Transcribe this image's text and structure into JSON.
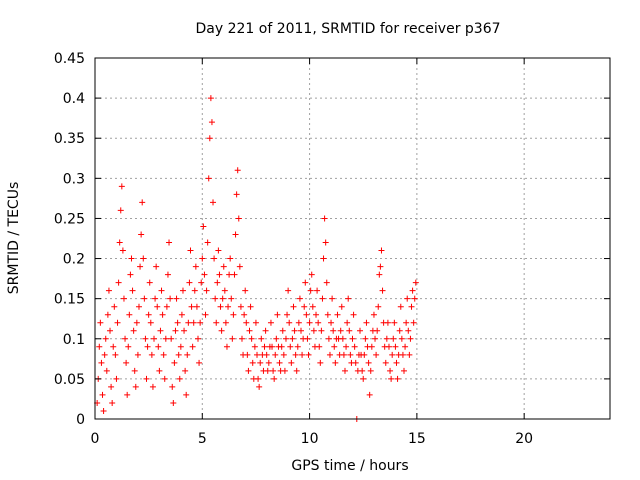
{
  "chart_data": {
    "type": "scatter",
    "title": "Day 221 of 2011, SRMTID for receiver p367",
    "xlabel": "GPS time / hours",
    "ylabel": "SRMTID / TECUs",
    "xlim": [
      0,
      24
    ],
    "ylim": [
      0,
      0.45
    ],
    "xticks": [
      0,
      5,
      10,
      15,
      20
    ],
    "xtick_labels": [
      "0",
      "5",
      "10",
      "15",
      "20"
    ],
    "yticks": [
      0,
      0.05,
      0.1,
      0.15,
      0.2,
      0.25,
      0.3,
      0.35,
      0.4,
      0.45
    ],
    "ytick_labels": [
      "0",
      "0.05",
      "0.1",
      "0.15",
      "0.2",
      "0.25",
      "0.3",
      "0.35",
      "0.4",
      "0.45"
    ],
    "grid": true,
    "marker": "+",
    "color": "#ff0000",
    "series": [
      {
        "points": [
          [
            0.1,
            0.02
          ],
          [
            0.15,
            0.05
          ],
          [
            0.2,
            0.09
          ],
          [
            0.25,
            0.12
          ],
          [
            0.3,
            0.07
          ],
          [
            0.35,
            0.03
          ],
          [
            0.4,
            0.01
          ],
          [
            0.45,
            0.08
          ],
          [
            0.5,
            0.1
          ],
          [
            0.55,
            0.06
          ],
          [
            0.6,
            0.13
          ],
          [
            0.65,
            0.16
          ],
          [
            0.7,
            0.11
          ],
          [
            0.75,
            0.04
          ],
          [
            0.8,
            0.02
          ],
          [
            0.85,
            0.09
          ],
          [
            0.9,
            0.14
          ],
          [
            0.95,
            0.08
          ],
          [
            1.0,
            0.05
          ],
          [
            1.05,
            0.12
          ],
          [
            1.1,
            0.17
          ],
          [
            1.15,
            0.22
          ],
          [
            1.2,
            0.26
          ],
          [
            1.25,
            0.29
          ],
          [
            1.3,
            0.21
          ],
          [
            1.35,
            0.15
          ],
          [
            1.4,
            0.1
          ],
          [
            1.45,
            0.07
          ],
          [
            1.5,
            0.03
          ],
          [
            1.55,
            0.09
          ],
          [
            1.6,
            0.13
          ],
          [
            1.65,
            0.18
          ],
          [
            1.7,
            0.2
          ],
          [
            1.75,
            0.16
          ],
          [
            1.8,
            0.11
          ],
          [
            1.85,
            0.06
          ],
          [
            1.9,
            0.04
          ],
          [
            1.95,
            0.12
          ],
          [
            2.0,
            0.08
          ],
          [
            2.05,
            0.14
          ],
          [
            2.1,
            0.19
          ],
          [
            2.15,
            0.23
          ],
          [
            2.2,
            0.27
          ],
          [
            2.25,
            0.2
          ],
          [
            2.3,
            0.15
          ],
          [
            2.35,
            0.1
          ],
          [
            2.4,
            0.05
          ],
          [
            2.45,
            0.09
          ],
          [
            2.5,
            0.13
          ],
          [
            2.55,
            0.17
          ],
          [
            2.6,
            0.12
          ],
          [
            2.65,
            0.08
          ],
          [
            2.7,
            0.04
          ],
          [
            2.75,
            0.1
          ],
          [
            2.8,
            0.15
          ],
          [
            2.85,
            0.19
          ],
          [
            2.9,
            0.14
          ],
          [
            2.95,
            0.09
          ],
          [
            3.0,
            0.06
          ],
          [
            3.05,
            0.11
          ],
          [
            3.1,
            0.16
          ],
          [
            3.15,
            0.13
          ],
          [
            3.2,
            0.08
          ],
          [
            3.25,
            0.05
          ],
          [
            3.3,
            0.1
          ],
          [
            3.35,
            0.14
          ],
          [
            3.4,
            0.18
          ],
          [
            3.45,
            0.22
          ],
          [
            3.5,
            0.15
          ],
          [
            3.55,
            0.1
          ],
          [
            3.6,
            0.04
          ],
          [
            3.65,
            0.02
          ],
          [
            3.7,
            0.07
          ],
          [
            3.75,
            0.11
          ],
          [
            3.8,
            0.15
          ],
          [
            3.85,
            0.12
          ],
          [
            3.9,
            0.08
          ],
          [
            3.95,
            0.05
          ],
          [
            4.0,
            0.09
          ],
          [
            4.05,
            0.13
          ],
          [
            4.1,
            0.16
          ],
          [
            4.15,
            0.11
          ],
          [
            4.2,
            0.06
          ],
          [
            4.25,
            0.03
          ],
          [
            4.3,
            0.08
          ],
          [
            4.35,
            0.12
          ],
          [
            4.4,
            0.17
          ],
          [
            4.45,
            0.21
          ],
          [
            4.5,
            0.14
          ],
          [
            4.55,
            0.09
          ],
          [
            4.6,
            0.12
          ],
          [
            4.65,
            0.16
          ],
          [
            4.7,
            0.19
          ],
          [
            4.75,
            0.14
          ],
          [
            4.8,
            0.1
          ],
          [
            4.85,
            0.07
          ],
          [
            4.9,
            0.12
          ],
          [
            4.95,
            0.17
          ],
          [
            5.0,
            0.2
          ],
          [
            5.05,
            0.24
          ],
          [
            5.1,
            0.18
          ],
          [
            5.15,
            0.13
          ],
          [
            5.2,
            0.16
          ],
          [
            5.25,
            0.22
          ],
          [
            5.3,
            0.3
          ],
          [
            5.35,
            0.35
          ],
          [
            5.4,
            0.4
          ],
          [
            5.45,
            0.37
          ],
          [
            5.5,
            0.27
          ],
          [
            5.55,
            0.2
          ],
          [
            5.6,
            0.15
          ],
          [
            5.65,
            0.12
          ],
          [
            5.7,
            0.17
          ],
          [
            5.75,
            0.21
          ],
          [
            5.8,
            0.18
          ],
          [
            5.85,
            0.14
          ],
          [
            5.9,
            0.11
          ],
          [
            5.95,
            0.15
          ],
          [
            6.0,
            0.19
          ],
          [
            6.05,
            0.16
          ],
          [
            6.1,
            0.12
          ],
          [
            6.15,
            0.09
          ],
          [
            6.2,
            0.14
          ],
          [
            6.25,
            0.18
          ],
          [
            6.3,
            0.2
          ],
          [
            6.35,
            0.15
          ],
          [
            6.4,
            0.1
          ],
          [
            6.45,
            0.13
          ],
          [
            6.5,
            0.18
          ],
          [
            6.55,
            0.23
          ],
          [
            6.6,
            0.28
          ],
          [
            6.65,
            0.31
          ],
          [
            6.7,
            0.25
          ],
          [
            6.75,
            0.19
          ],
          [
            6.8,
            0.14
          ],
          [
            6.85,
            0.1
          ],
          [
            6.9,
            0.08
          ],
          [
            6.95,
            0.13
          ],
          [
            7.0,
            0.16
          ],
          [
            7.05,
            0.12
          ],
          [
            7.1,
            0.08
          ],
          [
            7.15,
            0.06
          ],
          [
            7.2,
            0.11
          ],
          [
            7.25,
            0.14
          ],
          [
            7.3,
            0.1
          ],
          [
            7.35,
            0.07
          ],
          [
            7.4,
            0.05
          ],
          [
            7.45,
            0.09
          ],
          [
            7.5,
            0.12
          ],
          [
            7.55,
            0.08
          ],
          [
            7.6,
            0.05
          ],
          [
            7.65,
            0.04
          ],
          [
            7.7,
            0.07
          ],
          [
            7.75,
            0.1
          ],
          [
            7.8,
            0.08
          ],
          [
            7.85,
            0.06
          ],
          [
            7.9,
            0.09
          ],
          [
            7.95,
            0.11
          ],
          [
            8.0,
            0.08
          ],
          [
            8.05,
            0.06
          ],
          [
            8.1,
            0.07
          ],
          [
            8.15,
            0.09
          ],
          [
            8.2,
            0.12
          ],
          [
            8.25,
            0.09
          ],
          [
            8.3,
            0.06
          ],
          [
            8.35,
            0.05
          ],
          [
            8.4,
            0.08
          ],
          [
            8.45,
            0.1
          ],
          [
            8.5,
            0.13
          ],
          [
            8.55,
            0.09
          ],
          [
            8.6,
            0.07
          ],
          [
            8.65,
            0.06
          ],
          [
            8.7,
            0.09
          ],
          [
            8.75,
            0.11
          ],
          [
            8.8,
            0.08
          ],
          [
            8.85,
            0.06
          ],
          [
            8.9,
            0.1
          ],
          [
            8.95,
            0.13
          ],
          [
            9.0,
            0.16
          ],
          [
            9.05,
            0.12
          ],
          [
            9.1,
            0.09
          ],
          [
            9.15,
            0.07
          ],
          [
            9.2,
            0.1
          ],
          [
            9.25,
            0.14
          ],
          [
            9.3,
            0.11
          ],
          [
            9.35,
            0.08
          ],
          [
            9.4,
            0.06
          ],
          [
            9.45,
            0.09
          ],
          [
            9.5,
            0.12
          ],
          [
            9.55,
            0.15
          ],
          [
            9.6,
            0.11
          ],
          [
            9.65,
            0.08
          ],
          [
            9.7,
            0.1
          ],
          [
            9.75,
            0.14
          ],
          [
            9.8,
            0.17
          ],
          [
            9.85,
            0.13
          ],
          [
            9.9,
            0.1
          ],
          [
            9.95,
            0.08
          ],
          [
            10.0,
            0.12
          ],
          [
            10.05,
            0.16
          ],
          [
            10.1,
            0.18
          ],
          [
            10.15,
            0.14
          ],
          [
            10.2,
            0.11
          ],
          [
            10.25,
            0.09
          ],
          [
            10.3,
            0.13
          ],
          [
            10.35,
            0.16
          ],
          [
            10.4,
            0.12
          ],
          [
            10.45,
            0.09
          ],
          [
            10.5,
            0.07
          ],
          [
            10.55,
            0.11
          ],
          [
            10.6,
            0.15
          ],
          [
            10.65,
            0.2
          ],
          [
            10.7,
            0.25
          ],
          [
            10.75,
            0.22
          ],
          [
            10.8,
            0.17
          ],
          [
            10.85,
            0.13
          ],
          [
            10.9,
            0.1
          ],
          [
            10.95,
            0.08
          ],
          [
            11.0,
            0.12
          ],
          [
            11.05,
            0.15
          ],
          [
            11.1,
            0.11
          ],
          [
            11.15,
            0.09
          ],
          [
            11.2,
            0.07
          ],
          [
            11.25,
            0.1
          ],
          [
            11.3,
            0.13
          ],
          [
            11.35,
            0.1
          ],
          [
            11.4,
            0.08
          ],
          [
            11.45,
            0.11
          ],
          [
            11.5,
            0.14
          ],
          [
            11.55,
            0.1
          ],
          [
            11.6,
            0.08
          ],
          [
            11.65,
            0.06
          ],
          [
            11.7,
            0.09
          ],
          [
            11.75,
            0.12
          ],
          [
            11.8,
            0.15
          ],
          [
            11.85,
            0.11
          ],
          [
            11.9,
            0.08
          ],
          [
            11.95,
            0.07
          ],
          [
            12.0,
            0.1
          ],
          [
            12.05,
            0.13
          ],
          [
            12.1,
            0.09
          ],
          [
            12.15,
            0.07
          ],
          [
            12.2,
            0.0
          ],
          [
            12.25,
            0.06
          ],
          [
            12.3,
            0.08
          ],
          [
            12.35,
            0.11
          ],
          [
            12.4,
            0.08
          ],
          [
            12.45,
            0.06
          ],
          [
            12.5,
            0.05
          ],
          [
            12.55,
            0.08
          ],
          [
            12.6,
            0.1
          ],
          [
            12.65,
            0.12
          ],
          [
            12.7,
            0.09
          ],
          [
            12.75,
            0.07
          ],
          [
            12.8,
            0.03
          ],
          [
            12.85,
            0.06
          ],
          [
            12.9,
            0.09
          ],
          [
            12.95,
            0.11
          ],
          [
            13.0,
            0.13
          ],
          [
            13.05,
            0.1
          ],
          [
            13.1,
            0.08
          ],
          [
            13.15,
            0.11
          ],
          [
            13.2,
            0.14
          ],
          [
            13.25,
            0.18
          ],
          [
            13.3,
            0.19
          ],
          [
            13.35,
            0.21
          ],
          [
            13.4,
            0.16
          ],
          [
            13.45,
            0.12
          ],
          [
            13.5,
            0.09
          ],
          [
            13.55,
            0.07
          ],
          [
            13.6,
            0.1
          ],
          [
            13.65,
            0.12
          ],
          [
            13.7,
            0.09
          ],
          [
            13.75,
            0.06
          ],
          [
            13.8,
            0.05
          ],
          [
            13.85,
            0.08
          ],
          [
            13.9,
            0.1
          ],
          [
            13.95,
            0.12
          ],
          [
            14.0,
            0.09
          ],
          [
            14.05,
            0.07
          ],
          [
            14.1,
            0.05
          ],
          [
            14.15,
            0.08
          ],
          [
            14.2,
            0.11
          ],
          [
            14.25,
            0.14
          ],
          [
            14.3,
            0.1
          ],
          [
            14.35,
            0.08
          ],
          [
            14.4,
            0.06
          ],
          [
            14.45,
            0.09
          ],
          [
            14.5,
            0.12
          ],
          [
            14.55,
            0.15
          ],
          [
            14.6,
            0.11
          ],
          [
            14.65,
            0.08
          ],
          [
            14.7,
            0.1
          ],
          [
            14.75,
            0.14
          ],
          [
            14.8,
            0.16
          ],
          [
            14.85,
            0.12
          ],
          [
            14.9,
            0.15
          ],
          [
            14.95,
            0.17
          ]
        ]
      }
    ]
  }
}
